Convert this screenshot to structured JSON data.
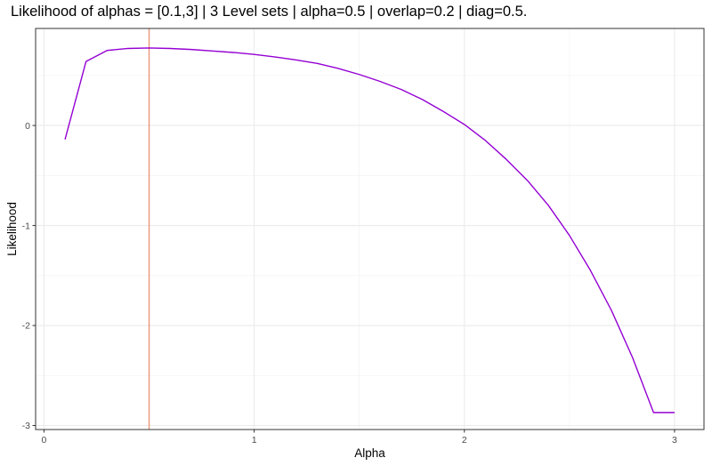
{
  "title": "Likelihood of alphas = [0.1,3] | 3 Level sets | alpha=0.5 | overlap=0.2 | diag=0.5.",
  "colors": {
    "line": "#9400D3",
    "vline": "#E9967A",
    "grid_major": "#ebebeb",
    "grid_minor": "#f4f4f4",
    "panel_border": "#333333"
  },
  "chart_data": {
    "type": "line",
    "title": "Likelihood of alphas = [0.1,3] | 3 Level sets | alpha=0.5 | overlap=0.2 | diag=0.5.",
    "xlabel": "Alpha",
    "ylabel": "Likelihood",
    "xlim": [
      -0.04,
      3.14
    ],
    "ylim": [
      -3.04,
      0.97
    ],
    "x_ticks": [
      0,
      1,
      2,
      3
    ],
    "x_tick_labels": [
      "0",
      "1",
      "2",
      "3"
    ],
    "y_ticks": [
      -3,
      -2,
      -1,
      0
    ],
    "y_tick_labels": [
      "-3",
      "-2",
      "-1",
      "0"
    ],
    "grid": true,
    "vline": {
      "x": 0.5
    },
    "series": [
      {
        "x": [
          0.1,
          0.2,
          0.3,
          0.4,
          0.5,
          0.6,
          0.7,
          0.8,
          0.9,
          1.0,
          1.1,
          1.2,
          1.3,
          1.4,
          1.5,
          1.6,
          1.7,
          1.8,
          1.9,
          2.0,
          2.1,
          2.2,
          2.3,
          2.4,
          2.5,
          2.6,
          2.7,
          2.8,
          2.9,
          3.0
        ],
        "y": [
          -0.14,
          0.64,
          0.75,
          0.77,
          0.775,
          0.77,
          0.76,
          0.745,
          0.73,
          0.71,
          0.685,
          0.655,
          0.62,
          0.57,
          0.51,
          0.44,
          0.36,
          0.26,
          0.14,
          0.01,
          -0.15,
          -0.34,
          -0.55,
          -0.8,
          -1.1,
          -1.45,
          -1.85,
          -2.32,
          -2.87,
          -2.87
        ]
      }
    ]
  }
}
